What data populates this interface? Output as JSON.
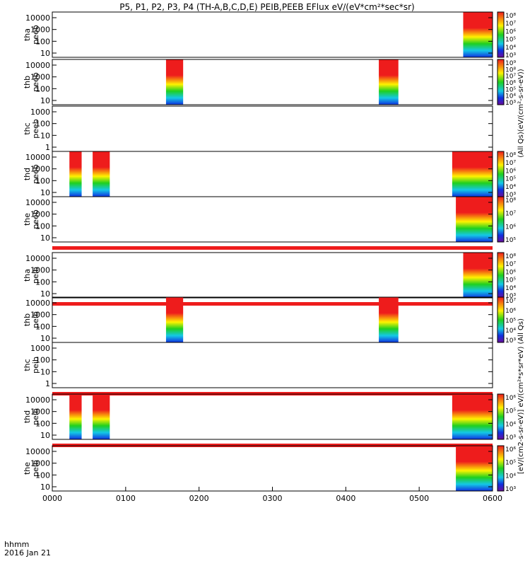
{
  "title": "P5, P1, P2, P3, P4 (TH-A,B,C,D,E) PEIB,PEEB EFlux eV/(eV*cm²*sec*sr)",
  "chart_data": {
    "type": "heatmap",
    "title": "P5, P1, P2, P3, P4 (TH-A,B,C,D,E) PEIB,PEEB EFlux eV/(eV*cm²*sec*sr)",
    "x_time_range": [
      "0000",
      "0600"
    ],
    "x_tick_labels": [
      "0000",
      "0100",
      "0200",
      "0300",
      "0400",
      "0500",
      "0600"
    ],
    "x_axis_label": "hhmm",
    "date": "2016 Jan 21",
    "y_scale": "log",
    "colorbar_label_top": "(All Qs)(eV/(cm²-s-sr-eV))",
    "colorbar_label_bottom": "[eV/(cm2-s-sr-eV)] eV/(cm²*s*sr*eV) (All Qs)",
    "panels": [
      {
        "id": "tha-peeb",
        "label": [
          "tha",
          "peeb"
        ],
        "y_ticks": [
          "10000",
          "1000",
          "100",
          "10"
        ],
        "cbar_ticks": [
          "10⁸",
          "10⁷",
          "10⁶",
          "10⁵",
          "10⁴",
          "10³"
        ],
        "segments": [
          [
            "0536",
            "0600"
          ]
        ],
        "flag_after": false
      },
      {
        "id": "thb-peeb",
        "label": [
          "thb",
          "peeb"
        ],
        "y_ticks": [
          "10000",
          "1000",
          "100",
          "10"
        ],
        "cbar_ticks": [
          "10⁹",
          "10⁸",
          "10⁷",
          "10⁶",
          "10⁵",
          "10⁴",
          "10³"
        ],
        "segments": [
          [
            "0133",
            "0147"
          ],
          [
            "0427",
            "0443"
          ]
        ],
        "flag_after": false
      },
      {
        "id": "thc-peeb",
        "label": [
          "thc",
          "peeb"
        ],
        "y_ticks": [
          "1000",
          "100",
          "10",
          "1"
        ],
        "cbar_ticks": [],
        "segments": [],
        "flag_after": false
      },
      {
        "id": "thd-peeb",
        "label": [
          "thd",
          "peeb"
        ],
        "y_ticks": [
          "10000",
          "1000",
          "100",
          "10"
        ],
        "cbar_ticks": [
          "10⁸",
          "10⁷",
          "10⁶",
          "10⁵",
          "10⁴",
          "10³"
        ],
        "segments": [
          [
            "0014",
            "0024"
          ],
          [
            "0033",
            "0047"
          ],
          [
            "0527",
            "0600"
          ]
        ],
        "flag_after": false
      },
      {
        "id": "the-peeb",
        "label": [
          "the",
          "peeb"
        ],
        "y_ticks": [
          "10000",
          "1000",
          "100",
          "10"
        ],
        "cbar_ticks": [
          "10⁸",
          "10⁷",
          "10⁶",
          "10⁵"
        ],
        "segments": [
          [
            "0530",
            "0600"
          ]
        ],
        "flag_after": true
      },
      {
        "id": "tha-peib",
        "label": [
          "tha",
          "peib"
        ],
        "y_ticks": [
          "10000",
          "1000",
          "100",
          "10"
        ],
        "cbar_ticks": [
          "10⁸",
          "10⁷",
          "10⁶",
          "10⁵",
          "10⁴",
          "10³"
        ],
        "segments": [
          [
            "0536",
            "0600"
          ]
        ],
        "flag_after": true
      },
      {
        "id": "thb-peib",
        "label": [
          "thb",
          "peib"
        ],
        "y_ticks": [
          "10000",
          "1000",
          "100",
          "10"
        ],
        "cbar_ticks": [
          "10⁷",
          "10⁶",
          "10⁵",
          "10⁴",
          "10³"
        ],
        "segments": [
          [
            "0133",
            "0147"
          ],
          [
            "0427",
            "0443"
          ]
        ],
        "flag_after": false
      },
      {
        "id": "thc-peib",
        "label": [
          "thc",
          "peib"
        ],
        "y_ticks": [
          "1000",
          "100",
          "10",
          "1"
        ],
        "cbar_ticks": [],
        "segments": [],
        "flag_after": true
      },
      {
        "id": "thd-peib",
        "label": [
          "thd",
          "peib"
        ],
        "y_ticks": [
          "10000",
          "1000",
          "100",
          "10"
        ],
        "cbar_ticks": [
          "10⁶",
          "10⁵",
          "10⁴",
          "10³"
        ],
        "segments": [
          [
            "0014",
            "0024"
          ],
          [
            "0033",
            "0047"
          ],
          [
            "0527",
            "0600"
          ]
        ],
        "flag_after": true
      },
      {
        "id": "the-peib",
        "label": [
          "the",
          "peib"
        ],
        "y_ticks": [
          "10000",
          "1000",
          "100",
          "10"
        ],
        "cbar_ticks": [
          "10⁶",
          "10⁵",
          "10⁴",
          "10³"
        ],
        "segments": [
          [
            "0530",
            "0600"
          ]
        ],
        "flag_after": false
      }
    ],
    "colors": {
      "red": "#ee1c1c",
      "yellow": "#fff200",
      "green": "#1fd01f",
      "cyan": "#14c8e6",
      "blue": "#1030e0",
      "purple": "#6a0c9a",
      "black": "#000000"
    }
  }
}
